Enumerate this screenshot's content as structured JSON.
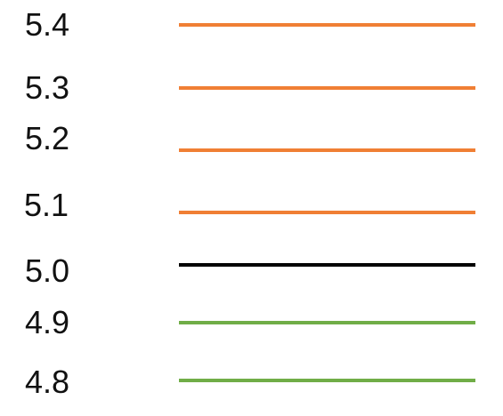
{
  "colors": {
    "above": "#f07f34",
    "reference": "#000000",
    "below": "#70ad47"
  },
  "levels": [
    {
      "label": "5.4",
      "line_color": "#f07f34"
    },
    {
      "label": "5.3",
      "line_color": "#f07f34"
    },
    {
      "label": "5.2",
      "line_color": "#f07f34"
    },
    {
      "label": "5.1",
      "line_color": "#f07f34"
    },
    {
      "label": "5.0",
      "line_color": "#000000"
    },
    {
      "label": "4.9",
      "line_color": "#70ad47"
    },
    {
      "label": "4.8",
      "line_color": "#70ad47"
    }
  ]
}
